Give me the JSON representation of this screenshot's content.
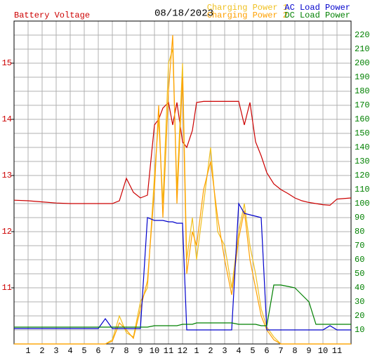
{
  "chart_data": {
    "type": "line",
    "title": "08/18/2023",
    "x": [
      0,
      1,
      2,
      3,
      4,
      5,
      6,
      6.5,
      7,
      7.5,
      8,
      8.5,
      9,
      9.5,
      10,
      10.3,
      10.6,
      11,
      11.3,
      11.6,
      12,
      12.3,
      12.7,
      13,
      13.5,
      14,
      14.5,
      15,
      15.5,
      16,
      16.4,
      16.8,
      17.2,
      17.6,
      18,
      18.5,
      19,
      19.5,
      20,
      20.5,
      21,
      21.5,
      22,
      22.5,
      23,
      24
    ],
    "xlim": [
      0,
      24
    ],
    "xticks": [
      1,
      2,
      3,
      4,
      5,
      6,
      7,
      8,
      9,
      10,
      11,
      12,
      {
        "value": 13,
        "label": "1"
      },
      {
        "value": 14,
        "label": "2"
      },
      {
        "value": 15,
        "label": "3"
      },
      {
        "value": 16,
        "label": "4"
      },
      {
        "value": 17,
        "label": "5"
      },
      {
        "value": 18,
        "label": "6"
      },
      {
        "value": 19,
        "label": "7"
      },
      {
        "value": 20,
        "label": "8"
      },
      {
        "value": 21,
        "label": "9"
      },
      {
        "value": 22,
        "label": "10"
      },
      {
        "value": 23,
        "label": "11"
      }
    ],
    "ylim": [
      10,
      15.75
    ],
    "yticks": [
      11,
      12,
      13,
      14,
      15
    ],
    "y2lim": [
      0,
      230
    ],
    "y2ticks": [
      10,
      20,
      30,
      40,
      50,
      60,
      70,
      80,
      90,
      100,
      110,
      120,
      130,
      140,
      150,
      160,
      170,
      180,
      190,
      200,
      210,
      220
    ],
    "grid": true,
    "series": [
      {
        "name": "Battery Voltage",
        "color": "#cc0000",
        "axis": "y",
        "values": [
          12.56,
          12.55,
          12.53,
          12.51,
          12.5,
          12.5,
          12.5,
          12.5,
          12.5,
          12.55,
          12.95,
          12.7,
          12.6,
          12.65,
          13.9,
          14.0,
          14.2,
          14.3,
          13.9,
          14.3,
          13.6,
          13.5,
          13.8,
          14.3,
          14.32,
          14.32,
          14.32,
          14.32,
          14.32,
          14.32,
          13.9,
          14.3,
          13.6,
          13.35,
          13.05,
          12.85,
          12.75,
          12.68,
          12.6,
          12.55,
          12.52,
          12.5,
          12.48,
          12.47,
          12.58,
          12.6
        ]
      },
      {
        "name": "Charging Power 1",
        "color": "#f0c020",
        "axis": "y2",
        "values": [
          0,
          0,
          0,
          0,
          0,
          0,
          0,
          0,
          3,
          20,
          8,
          5,
          30,
          40,
          120,
          160,
          100,
          200,
          210,
          110,
          200,
          60,
          90,
          60,
          100,
          140,
          80,
          70,
          40,
          80,
          100,
          70,
          50,
          25,
          12,
          5,
          0,
          0,
          0,
          0,
          0,
          0,
          0,
          0,
          0,
          0
        ]
      },
      {
        "name": "Charging Power 2",
        "color": "#ffa000",
        "axis": "y2",
        "values": [
          0,
          0,
          0,
          0,
          0,
          0,
          0,
          0,
          2,
          15,
          10,
          4,
          25,
          45,
          110,
          170,
          90,
          180,
          220,
          100,
          190,
          50,
          80,
          70,
          110,
          130,
          90,
          60,
          35,
          75,
          95,
          60,
          40,
          20,
          10,
          3,
          0,
          0,
          0,
          0,
          0,
          0,
          0,
          0,
          0,
          0
        ]
      },
      {
        "name": "AC Load Power",
        "color": "#0000cc",
        "axis": "y2",
        "values": [
          11,
          11,
          11,
          11,
          11,
          11,
          11,
          18,
          11,
          11,
          11,
          11,
          11,
          90,
          88,
          88,
          88,
          87,
          87,
          86,
          86,
          10,
          10,
          10,
          10,
          10,
          10,
          10,
          10,
          100,
          93,
          92,
          91,
          90,
          10,
          10,
          10,
          10,
          10,
          10,
          10,
          10,
          10,
          13,
          10,
          10
        ]
      },
      {
        "name": "DC Load Power",
        "color": "#008000",
        "axis": "y2",
        "values": [
          12,
          12,
          12,
          12,
          12,
          12,
          12,
          12,
          12,
          12,
          12,
          12,
          12,
          12,
          13,
          13,
          13,
          13,
          13,
          13,
          14,
          14,
          14,
          15,
          15,
          15,
          15,
          15,
          15,
          14,
          14,
          14,
          14,
          13,
          13,
          42,
          42,
          41,
          40,
          35,
          30,
          14,
          14,
          14,
          14,
          14
        ]
      }
    ]
  }
}
